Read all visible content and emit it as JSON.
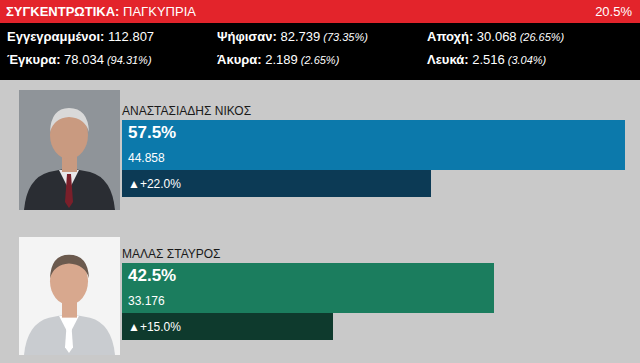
{
  "header": {
    "title": "ΣΥΓΚΕΝΤΡΩΤΙΚΑ:",
    "region": "ΠΑΓΚΥΠΡΙΑ",
    "progress": "20.5%"
  },
  "stats": [
    [
      {
        "label": "Εγγεγραμμένοι:",
        "value": "112.807"
      },
      {
        "label": "Ψήφισαν:",
        "value": "82.739",
        "share": "(73.35%)"
      },
      {
        "label": "Αποχή:",
        "value": "30.068",
        "share": "(26.65%)"
      }
    ],
    [
      {
        "label": "Έγκυρα:",
        "value": "78.034",
        "share": "(94.31%)"
      },
      {
        "label": "Άκυρα:",
        "value": "2.189",
        "share": "(2.65%)"
      },
      {
        "label": "Λευκά:",
        "value": "2.516",
        "share": "(3.04%)"
      }
    ]
  ],
  "chart_data": {
    "type": "bar",
    "orientation": "horizontal",
    "categories": [
      "ΑΝΑΣΤΑΣΙΑΔΗΣ ΝΙΚΟΣ",
      "ΜΑΛΑΣ ΣΤΑΥΡΟΣ"
    ],
    "values": [
      57.5,
      42.5
    ],
    "value_labels": [
      "57.5%",
      "42.5%"
    ],
    "colors": [
      "#0c79ab",
      "#1b7d5e"
    ],
    "votes": [
      44858,
      33176
    ],
    "vote_labels": [
      "44.858",
      "33.176"
    ],
    "change": [
      22.0,
      15.0
    ],
    "change_labels": [
      "▲+22.0%",
      "▲+15.0%"
    ],
    "change_colors": [
      "#0c3a55",
      "#0e3a2d"
    ],
    "xlim": [
      0,
      58.3
    ],
    "x2lim": [
      0,
      36.3
    ],
    "data_labels": true,
    "tick_labels": false,
    "grid": false
  }
}
